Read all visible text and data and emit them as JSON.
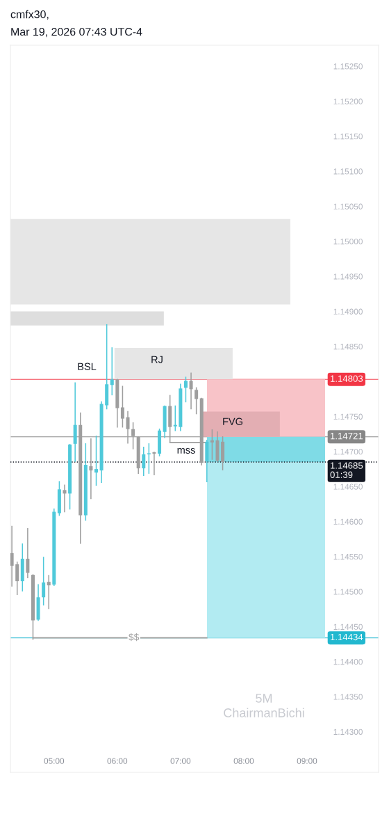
{
  "chart_data": {
    "type": "candlestick",
    "title": "cmfx30,",
    "subtitle": "Mar 19, 2026 07:43 UTC-4",
    "x": [
      4.3333,
      4.4167,
      4.5,
      4.5833,
      4.6667,
      4.75,
      4.8333,
      4.9167,
      5.0,
      5.0833,
      5.1667,
      5.25,
      5.3333,
      5.4167,
      5.5,
      5.5833,
      5.6667,
      5.75,
      5.8333,
      5.9167,
      6.0,
      6.0833,
      6.1667,
      6.25,
      6.3333,
      6.4167,
      6.5,
      6.5833,
      6.6667,
      6.75,
      6.8333,
      6.9167,
      7.0,
      7.0833,
      7.1667,
      7.25,
      7.3333,
      7.4167,
      7.5,
      7.5833,
      7.6667
    ],
    "ohlc": [
      [
        1.14555,
        1.14593,
        1.14508,
        1.14537
      ],
      [
        1.14539,
        1.14542,
        1.14496,
        1.14515
      ],
      [
        1.14515,
        1.14568,
        1.14501,
        1.14547
      ],
      [
        1.14547,
        1.1459,
        1.1452,
        1.14527
      ],
      [
        1.14524,
        1.14524,
        1.14432,
        1.14459
      ],
      [
        1.1446,
        1.1451,
        1.14459,
        1.14492
      ],
      [
        1.14492,
        1.14549,
        1.14481,
        1.14513
      ],
      [
        1.14514,
        1.14523,
        1.14476,
        1.14509
      ],
      [
        1.1451,
        1.14618,
        1.14509,
        1.14614
      ],
      [
        1.14612,
        1.14657,
        1.14609,
        1.14646
      ],
      [
        1.14645,
        1.14652,
        1.14614,
        1.1464
      ],
      [
        1.1464,
        1.1471,
        1.14618,
        1.1471
      ],
      [
        1.14711,
        1.14798,
        1.14686,
        1.14738
      ],
      [
        1.14738,
        1.14755,
        1.14569,
        1.14609
      ],
      [
        1.14609,
        1.14711,
        1.14602,
        1.14681
      ],
      [
        1.14679,
        1.14718,
        1.14633,
        1.14673
      ],
      [
        1.1467,
        1.14722,
        1.14652,
        1.14675
      ],
      [
        1.14673,
        1.14771,
        1.14656,
        1.14768
      ],
      [
        1.14766,
        1.14881,
        1.14761,
        1.14796
      ],
      [
        1.14795,
        1.14848,
        1.14781,
        1.14803
      ],
      [
        1.14803,
        1.14803,
        1.14735,
        1.14762
      ],
      [
        1.14763,
        1.14793,
        1.14735,
        1.14747
      ],
      [
        1.14749,
        1.14757,
        1.14712,
        1.14732
      ],
      [
        1.14732,
        1.14741,
        1.14704,
        1.14722
      ],
      [
        1.14721,
        1.14721,
        1.14669,
        1.14676
      ],
      [
        1.14676,
        1.14706,
        1.14666,
        1.14696
      ],
      [
        1.14696,
        1.14711,
        1.14669,
        1.14697
      ],
      [
        1.14699,
        1.14699,
        1.14667,
        1.14697
      ],
      [
        1.14697,
        1.14732,
        1.14694,
        1.1473
      ],
      [
        1.14728,
        1.14765,
        1.1472,
        1.14765
      ],
      [
        1.14765,
        1.1478,
        1.14713,
        1.14735
      ],
      [
        1.14736,
        1.14765,
        1.1473,
        1.14738
      ],
      [
        1.14735,
        1.14796,
        1.1473,
        1.1479
      ],
      [
        1.14791,
        1.14806,
        1.14771,
        1.14801
      ],
      [
        1.14801,
        1.14812,
        1.14761,
        1.14789
      ],
      [
        1.14788,
        1.14791,
        1.14754,
        1.14775
      ],
      [
        1.14776,
        1.14776,
        1.14681,
        1.14684
      ],
      [
        1.14686,
        1.14716,
        1.14657,
        1.14714
      ],
      [
        1.14716,
        1.14731,
        1.14689,
        1.14713
      ],
      [
        1.14716,
        1.14728,
        1.14686,
        1.14687
      ],
      [
        1.14714,
        1.14721,
        1.14674,
        1.14685
      ]
    ],
    "colors": [
      "#9e9e9e",
      "#9e9e9e",
      "#4fc9da",
      "#9e9e9e",
      "#9e9e9e",
      "#4fc9da",
      "#4fc9da",
      "#9e9e9e",
      "#4fc9da",
      "#4fc9da",
      "#9e9e9e",
      "#4fc9da",
      "#4fc9da",
      "#9e9e9e",
      "#4fc9da",
      "#9e9e9e",
      "#4fc9da",
      "#4fc9da",
      "#4fc9da",
      "#4fc9da",
      "#9e9e9e",
      "#9e9e9e",
      "#9e9e9e",
      "#9e9e9e",
      "#9e9e9e",
      "#4fc9da",
      "#4fc9da",
      "#9e9e9e",
      "#4fc9da",
      "#4fc9da",
      "#9e9e9e",
      "#4fc9da",
      "#4fc9da",
      "#4fc9da",
      "#9e9e9e",
      "#9e9e9e",
      "#9e9e9e",
      "#4fc9da",
      "#9e9e9e",
      "#9e9e9e",
      "#9e9e9e"
    ],
    "series": [
      {
        "type": "line",
        "name": "$$",
        "color": "#9e9e9e",
        "x": [
          4.6667,
          7.4167
        ],
        "values": [
          1.14434,
          1.14434
        ]
      },
      {
        "type": "line",
        "color": "#9e9e9e",
        "x": [
          6.8333,
          7.4167
        ],
        "values": [
          1.14713,
          1.14713
        ]
      },
      {
        "type": "area",
        "color": "#e6e6e6",
        "x": [
          4.31,
          8.736
        ],
        "values": [
          null,
          null
        ],
        "upper": [
          1.15032,
          1.15032
        ],
        "lower": [
          1.1491,
          1.1491
        ]
      },
      {
        "type": "area",
        "color": "#dedede",
        "x": [
          4.31,
          6.736
        ],
        "values": [
          null,
          null
        ],
        "upper": [
          1.149,
          1.149
        ],
        "lower": [
          1.1488,
          1.1488
        ]
      },
      {
        "type": "area",
        "color": "#e6e6e6",
        "x": [
          5.956,
          7.824
        ],
        "values": [
          null,
          null
        ],
        "upper": [
          1.14848,
          1.14848
        ],
        "lower": [
          1.14803,
          1.14803
        ]
      },
      {
        "type": "area",
        "color": "#f8c3c8",
        "x": [
          7.418,
          9.286
        ],
        "values": [
          null,
          null
        ],
        "upper": [
          1.14803,
          1.14803
        ],
        "lower": [
          1.14721,
          1.14721
        ]
      },
      {
        "type": "area",
        "color": "#b2ebf2",
        "x": [
          7.418,
          9.286
        ],
        "values": [
          null,
          null
        ],
        "upper": [
          1.14685,
          1.14685
        ],
        "lower": [
          1.14434,
          1.14434
        ]
      },
      {
        "type": "area",
        "color": "#7fdbe6",
        "x": [
          7.418,
          9.286
        ],
        "values": [
          null,
          null
        ],
        "upper": [
          1.14721,
          1.14721
        ],
        "lower": [
          1.14685,
          1.14685
        ]
      },
      {
        "type": "area",
        "color": "#e3aeb3",
        "x": [
          7.33,
          8.571
        ],
        "values": [
          null,
          null
        ],
        "upper": [
          1.14757,
          1.14757
        ],
        "lower": [
          1.14721,
          1.14721
        ]
      }
    ],
    "ref_lines": [
      {
        "axis": "y",
        "value": 1.14803,
        "label": "1.14803",
        "color": "#f23645"
      },
      {
        "axis": "y",
        "value": 1.14721,
        "label": "1.14721",
        "color": "#868686"
      },
      {
        "axis": "y",
        "value": 1.14685,
        "label": "1.14685\n01:39",
        "color": "#131722",
        "line_style": "dotted"
      },
      {
        "axis": "y",
        "value": 1.14434,
        "label": "1.14434",
        "color": "#22b8cf"
      }
    ],
    "annotations": [
      "BSL",
      "RJ",
      "FVG",
      "mss",
      "5M",
      "ChairmanBichi"
    ],
    "xlim": [
      4.31,
      10.132
    ],
    "ylim": [
      1.14242,
      1.1528
    ],
    "xticks": [
      {
        "value": 5,
        "label": "05:00"
      },
      {
        "value": 6,
        "label": "06:00"
      },
      {
        "value": 7,
        "label": "07:00"
      },
      {
        "value": 8,
        "label": "08:00"
      },
      {
        "value": 9,
        "label": "09:00"
      }
    ],
    "yticks": [
      {
        "value": 1.143,
        "label": "1.14300"
      },
      {
        "value": 1.1435,
        "label": "1.14350"
      },
      {
        "value": 1.144,
        "label": "1.14400"
      },
      {
        "value": 1.1445,
        "label": "1.14450"
      },
      {
        "value": 1.145,
        "label": "1.14500"
      },
      {
        "value": 1.1455,
        "label": "1.14550"
      },
      {
        "value": 1.146,
        "label": "1.14600"
      },
      {
        "value": 1.1465,
        "label": "1.14650"
      },
      {
        "value": 1.147,
        "label": "1.14700"
      },
      {
        "value": 1.1475,
        "label": "1.14750"
      },
      {
        "value": 1.1485,
        "label": "1.14850"
      },
      {
        "value": 1.149,
        "label": "1.14900"
      },
      {
        "value": 1.1495,
        "label": "1.14950"
      },
      {
        "value": 1.15,
        "label": "1.15000"
      },
      {
        "value": 1.1505,
        "label": "1.15050"
      },
      {
        "value": 1.151,
        "label": "1.15100"
      },
      {
        "value": 1.1515,
        "label": "1.15150"
      },
      {
        "value": 1.152,
        "label": "1.15200"
      },
      {
        "value": 1.1525,
        "label": "1.15250"
      }
    ]
  }
}
